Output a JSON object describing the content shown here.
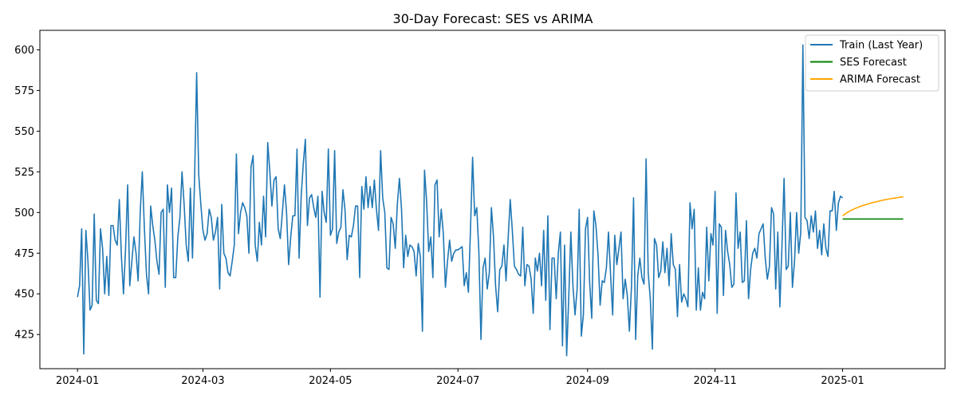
{
  "chart_data": {
    "type": "line",
    "title": "30-Day Forecast: SES vs ARIMA",
    "xlabel": "",
    "ylabel": "",
    "xlim": [
      "2023-12-14",
      "2025-02-19"
    ],
    "ylim": [
      404,
      612
    ],
    "grid": false,
    "legend_position": "top-right",
    "x_ticks": [
      "2024-01-01",
      "2024-03-01",
      "2024-05-01",
      "2024-07-01",
      "2024-09-01",
      "2024-11-01",
      "2025-01-01"
    ],
    "x_tick_labels": [
      "2024-01",
      "2024-03",
      "2024-05",
      "2024-07",
      "2024-09",
      "2024-11",
      "2025-01"
    ],
    "y_ticks": [
      425,
      450,
      475,
      500,
      525,
      550,
      575,
      600
    ],
    "series": [
      {
        "name": "Train (Last Year)",
        "color": "#1f77b4",
        "x_start": "2024-01-01",
        "x_end": "2024-12-31",
        "values": [
          448,
          455,
          490,
          413,
          489,
          470,
          440,
          443,
          499,
          446,
          444,
          490,
          478,
          450,
          473,
          449,
          492,
          492,
          483,
          480,
          508,
          473,
          450,
          478,
          517,
          455,
          470,
          485,
          475,
          458,
          500,
          525,
          490,
          462,
          450,
          504,
          492,
          483,
          470,
          462,
          500,
          502,
          454,
          517,
          500,
          515,
          460,
          460,
          485,
          497,
          525,
          505,
          480,
          470,
          515,
          472,
          520,
          586,
          523,
          505,
          489,
          483,
          487,
          502,
          497,
          483,
          488,
          497,
          453,
          505,
          475,
          472,
          463,
          461,
          470,
          480,
          536,
          487,
          500,
          506,
          503,
          498,
          475,
          528,
          535,
          480,
          470,
          494,
          480,
          510,
          485,
          543,
          525,
          504,
          520,
          522,
          490,
          484,
          500,
          517,
          500,
          468,
          485,
          498,
          498,
          539,
          472,
          510,
          530,
          545,
          492,
          509,
          511,
          503,
          497,
          510,
          448,
          513,
          500,
          494,
          539,
          486,
          490,
          538,
          481,
          488,
          491,
          514,
          501,
          471,
          486,
          485,
          492,
          504,
          504,
          460,
          516,
          502,
          522,
          503,
          516,
          503,
          520,
          502,
          489,
          538,
          509,
          500,
          466,
          465,
          497,
          493,
          478,
          505,
          521,
          502,
          466,
          486,
          473,
          480,
          479,
          476,
          461,
          481,
          473,
          427,
          526,
          507,
          476,
          485,
          460,
          517,
          520,
          485,
          502,
          487,
          454,
          470,
          483,
          470,
          475,
          477,
          477,
          478,
          479,
          455,
          463,
          451,
          490,
          534,
          498,
          503,
          476,
          422,
          466,
          472,
          453,
          463,
          503,
          485,
          455,
          439,
          465,
          467,
          480,
          458,
          484,
          508,
          489,
          467,
          465,
          462,
          461,
          491,
          455,
          468,
          467,
          459,
          438,
          472,
          464,
          475,
          455,
          489,
          446,
          498,
          428,
          472,
          472,
          447,
          475,
          488,
          418,
          480,
          412,
          448,
          488,
          455,
          437,
          453,
          502,
          424,
          437,
          490,
          497,
          457,
          435,
          501,
          492,
          474,
          443,
          458,
          457,
          466,
          488,
          462,
          437,
          486,
          468,
          478,
          488,
          447,
          459,
          449,
          427,
          454,
          509,
          422,
          461,
          472,
          460,
          456,
          533,
          463,
          447,
          416,
          484,
          480,
          460,
          464,
          482,
          463,
          478,
          455,
          487,
          468,
          465,
          436,
          468,
          445,
          450,
          447,
          442,
          506,
          490,
          502,
          440,
          466,
          440,
          451,
          447,
          491,
          458,
          487,
          480,
          513,
          438,
          493,
          491,
          449,
          489,
          476,
          468,
          454,
          456,
          512,
          478,
          488,
          457,
          458,
          495,
          447,
          465,
          475,
          478,
          472,
          487,
          490,
          493,
          472,
          459,
          467,
          503,
          499,
          453,
          488,
          442,
          480,
          521,
          465,
          467,
          500,
          454,
          470,
          500,
          475,
          488,
          603,
          497,
          495,
          484,
          498,
          488,
          501,
          478,
          489,
          474,
          493,
          478,
          473,
          501,
          501,
          513,
          489,
          506,
          510,
          509
        ]
      },
      {
        "name": "SES Forecast",
        "color": "#008000",
        "x_start": "2025-01-01",
        "x_end": "2025-01-30",
        "values": [
          496,
          496,
          496,
          496,
          496,
          496,
          496,
          496,
          496,
          496,
          496,
          496,
          496,
          496,
          496,
          496,
          496,
          496,
          496,
          496,
          496,
          496,
          496,
          496,
          496,
          496,
          496,
          496,
          496,
          496
        ]
      },
      {
        "name": "ARIMA Forecast",
        "color": "#ffa500",
        "x_start": "2025-01-01",
        "x_end": "2025-01-30",
        "values": [
          498.0,
          498.9,
          499.8,
          500.6,
          501.3,
          501.9,
          502.5,
          503.0,
          503.5,
          504.0,
          504.4,
          504.8,
          505.2,
          505.6,
          506.0,
          506.3,
          506.6,
          506.9,
          507.2,
          507.5,
          507.8,
          508.0,
          508.3,
          508.5,
          508.7,
          508.9,
          509.1,
          509.3,
          509.5,
          509.7
        ]
      }
    ]
  }
}
